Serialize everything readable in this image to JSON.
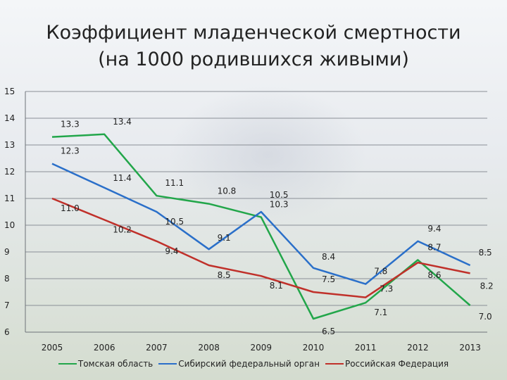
{
  "title": {
    "line1": "Коэффициент младенческой смертности",
    "line2": "(на 1000 родившихся живыми)"
  },
  "chart_data": {
    "type": "line",
    "x": [
      "2005",
      "2006",
      "2007",
      "2008",
      "2009",
      "2010",
      "2011",
      "2012",
      "2013"
    ],
    "ylim": [
      6,
      15
    ],
    "yticks": [
      "6",
      "7",
      "8",
      "9",
      "10",
      "11",
      "12",
      "13",
      "14",
      "15"
    ],
    "grid": true,
    "legend_position": "bottom",
    "series": [
      {
        "name": "Томская область",
        "color": "#22a64a",
        "values": [
          13.3,
          13.4,
          11.1,
          10.8,
          10.3,
          6.5,
          7.1,
          8.7,
          7.0
        ],
        "labels": [
          "13.3",
          "13.4",
          "11.1",
          "10.8",
          "10.3",
          "6.5",
          "7.1",
          "8.7",
          "7.0"
        ]
      },
      {
        "name": "Сибирский федеральный орган",
        "color": "#2a6fc9",
        "values": [
          12.3,
          11.4,
          10.5,
          9.1,
          10.5,
          8.4,
          7.8,
          9.4,
          8.5
        ],
        "labels": [
          "12.3",
          "11.4",
          "10.5",
          "9.1",
          "10.5",
          "8.4",
          "7.8",
          "9.4",
          "8.5"
        ]
      },
      {
        "name": "Российская Федерация",
        "color": "#c0302a",
        "values": [
          11.0,
          10.2,
          9.4,
          8.5,
          8.1,
          7.5,
          7.3,
          8.6,
          8.2
        ],
        "labels": [
          "11.0",
          "10.2",
          "9.4",
          "8.5",
          "8.1",
          "7.5",
          "7.3",
          "8.6",
          "8.2"
        ]
      }
    ]
  }
}
